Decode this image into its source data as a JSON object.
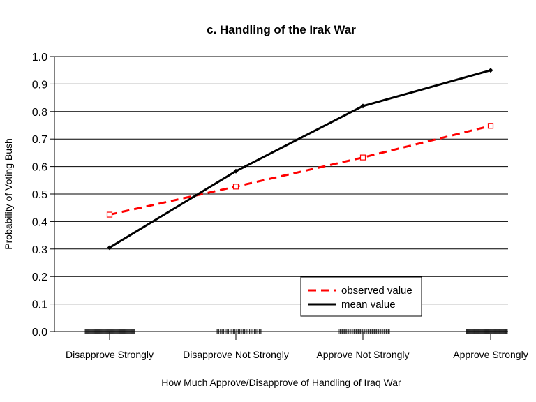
{
  "chart_data": {
    "type": "line",
    "title": "c. Handling of the Irak War",
    "xlabel": "How Much Approve/Disapprove of Handling of Iraq War",
    "ylabel": "Probability of Voting Bush",
    "categories": [
      "Disapprove Strongly",
      "Disapprove Not Strongly",
      "Approve Not Strongly",
      "Approve Strongly"
    ],
    "ylim": [
      0.0,
      1.0
    ],
    "yticks": [
      "0.0",
      "0.1",
      "0.2",
      "0.3",
      "0.4",
      "0.5",
      "0.6",
      "0.7",
      "0.8",
      "0.9",
      "1.0"
    ],
    "grid": true,
    "legend_position": "bottom-right",
    "rug": true,
    "series": [
      {
        "name": "observed value",
        "values": [
          0.425,
          0.527,
          0.633,
          0.748
        ],
        "color": "#ff0000",
        "style": "dashed",
        "marker": "square"
      },
      {
        "name": "mean value",
        "values": [
          0.305,
          0.583,
          0.82,
          0.95
        ],
        "color": "#000000",
        "style": "solid",
        "marker": "diamond"
      }
    ]
  }
}
